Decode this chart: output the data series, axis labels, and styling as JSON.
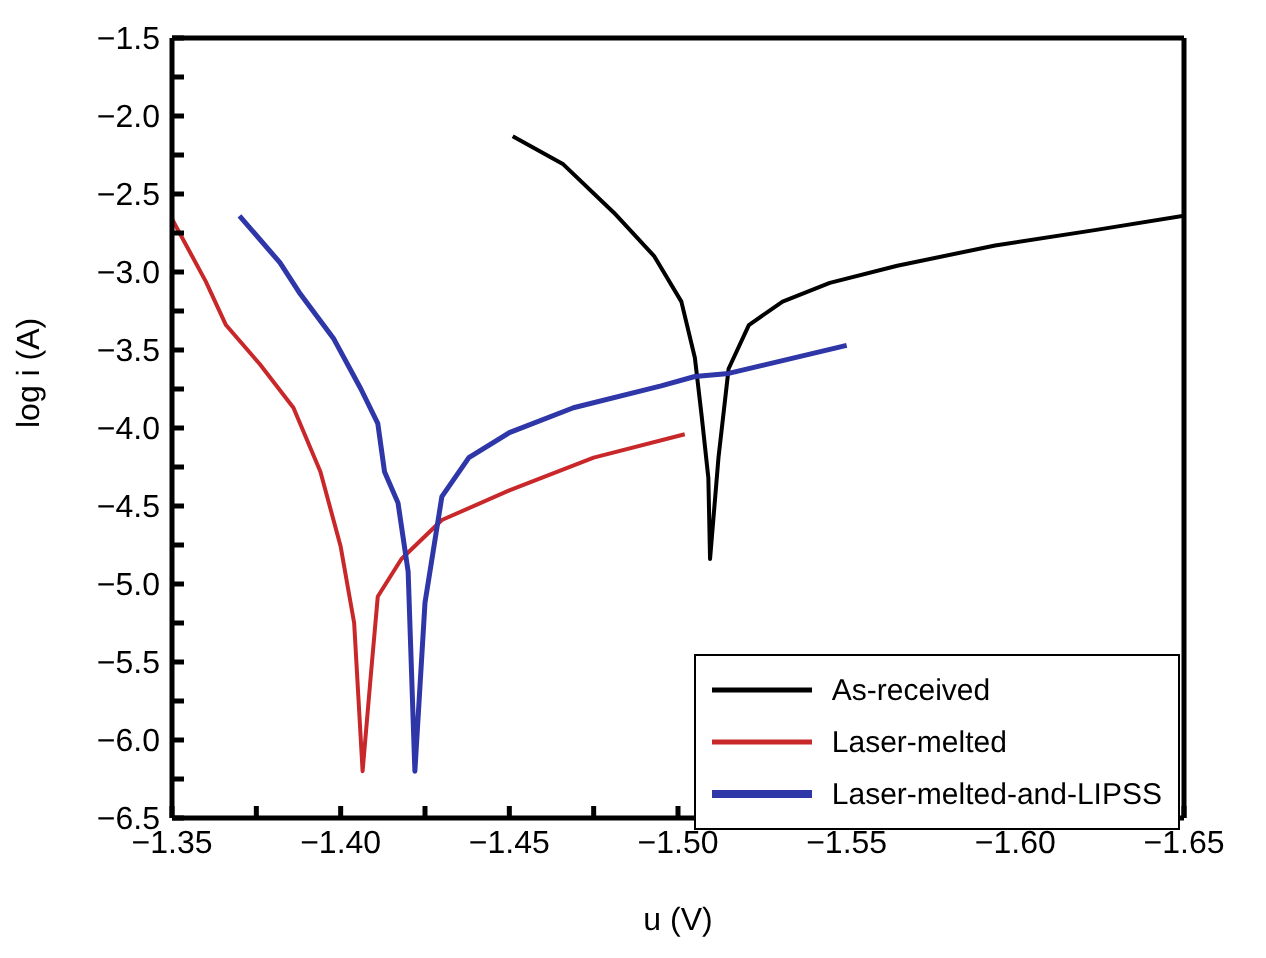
{
  "chart_data": {
    "type": "line",
    "xlabel": "u (V)",
    "ylabel": "log i (A)",
    "xlim": [
      -1.35,
      -1.65
    ],
    "xticks": [
      {
        "value": -1.35,
        "label": "−1.35"
      },
      {
        "value": -1.375,
        "label": null
      },
      {
        "value": -1.4,
        "label": "−1.40"
      },
      {
        "value": -1.425,
        "label": null
      },
      {
        "value": -1.45,
        "label": "−1.45"
      },
      {
        "value": -1.475,
        "label": null
      },
      {
        "value": -1.5,
        "label": "−1.50"
      },
      {
        "value": -1.525,
        "label": null
      },
      {
        "value": -1.55,
        "label": "−1.55"
      },
      {
        "value": -1.575,
        "label": null
      },
      {
        "value": -1.6,
        "label": "−1.60"
      },
      {
        "value": -1.625,
        "label": null
      },
      {
        "value": -1.65,
        "label": "−1.65"
      }
    ],
    "ylim": [
      -6.5,
      -1.5
    ],
    "yticks": [
      {
        "value": -6.5,
        "label": "−6.5"
      },
      {
        "value": -6.25,
        "label": null
      },
      {
        "value": -6,
        "label": "−6.0"
      },
      {
        "value": -5.75,
        "label": null
      },
      {
        "value": -5.5,
        "label": "−5.5"
      },
      {
        "value": -5.25,
        "label": null
      },
      {
        "value": -5,
        "label": "−5.0"
      },
      {
        "value": -4.75,
        "label": null
      },
      {
        "value": -4.5,
        "label": "−4.5"
      },
      {
        "value": -4.25,
        "label": null
      },
      {
        "value": -4,
        "label": "−4.0"
      },
      {
        "value": -3.75,
        "label": null
      },
      {
        "value": -3.5,
        "label": "−3.5"
      },
      {
        "value": -3.25,
        "label": null
      },
      {
        "value": -3,
        "label": "−3.0"
      },
      {
        "value": -2.75,
        "label": null
      },
      {
        "value": -2.5,
        "label": "−2.5"
      },
      {
        "value": -2.25,
        "label": null
      },
      {
        "value": -2,
        "label": "−2.0"
      },
      {
        "value": -1.75,
        "label": null
      },
      {
        "value": -1.5,
        "label": "−1.5"
      }
    ],
    "grid": false,
    "legend": "bottom right",
    "marker": "none",
    "line_style": "solid",
    "series": [
      {
        "name": "As-received",
        "color": "#000000",
        "x": [
          -1.451,
          -1.466,
          -1.481,
          -1.493,
          -1.501,
          -1.505,
          -1.507,
          -1.509,
          -1.5095,
          -1.512,
          -1.515,
          -1.521,
          -1.531,
          -1.545,
          -1.565,
          -1.594,
          -1.624,
          -1.65
        ],
        "values": [
          -2.13,
          -2.31,
          -2.62,
          -2.9,
          -3.19,
          -3.55,
          -3.92,
          -4.32,
          -4.84,
          -4.19,
          -3.62,
          -3.34,
          -3.19,
          -3.07,
          -2.96,
          -2.83,
          -2.73,
          -2.64
        ]
      },
      {
        "name": "Laser-melted",
        "color": "#c8282a",
        "x": [
          -1.35,
          -1.36,
          -1.366,
          -1.376,
          -1.386,
          -1.394,
          -1.4,
          -1.404,
          -1.4065,
          -1.409,
          -1.411,
          -1.418,
          -1.43,
          -1.45,
          -1.475,
          -1.502
        ],
        "values": [
          -2.66,
          -3.06,
          -3.34,
          -3.59,
          -3.87,
          -4.28,
          -4.76,
          -5.25,
          -6.2,
          -5.57,
          -5.08,
          -4.84,
          -4.59,
          -4.4,
          -4.19,
          -4.04
        ]
      },
      {
        "name": "Laser-melted-and-LIPSS",
        "color": "#2f36a8",
        "x": [
          -1.37,
          -1.382,
          -1.388,
          -1.398,
          -1.406,
          -1.411,
          -1.413,
          -1.417,
          -1.42,
          -1.422,
          -1.425,
          -1.43,
          -1.438,
          -1.45,
          -1.469,
          -1.495,
          -1.505,
          -1.515,
          -1.55
        ],
        "values": [
          -2.64,
          -2.94,
          -3.14,
          -3.43,
          -3.75,
          -3.97,
          -4.28,
          -4.48,
          -4.92,
          -6.2,
          -5.12,
          -4.44,
          -4.19,
          -4.03,
          -3.87,
          -3.73,
          -3.67,
          -3.65,
          -3.47
        ]
      }
    ]
  }
}
